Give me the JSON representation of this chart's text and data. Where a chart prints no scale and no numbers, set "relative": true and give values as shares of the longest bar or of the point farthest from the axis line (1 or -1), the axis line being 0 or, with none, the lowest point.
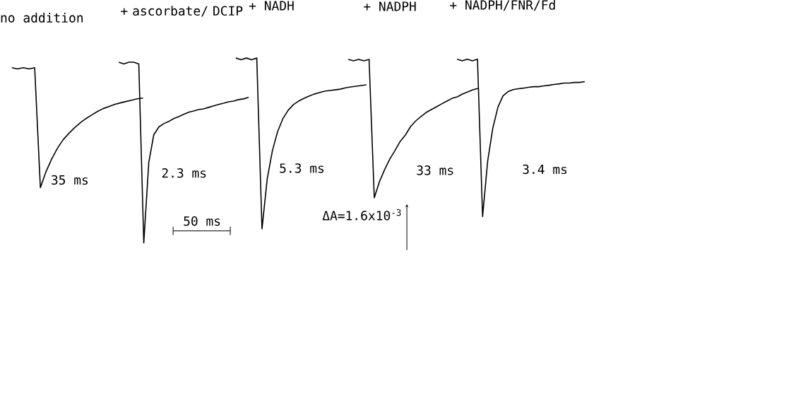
{
  "chart_data": [
    {
      "type": "line",
      "relative": true,
      "title": "no addition",
      "annotations": [
        "35 ms"
      ],
      "categories": [
        null,
        null,
        null,
        null,
        null,
        null,
        null,
        null,
        null,
        null,
        null,
        null,
        null,
        null,
        null,
        null,
        null,
        null,
        null,
        null,
        null,
        null,
        null,
        null
      ],
      "series": [
        {
          "color": "#000000",
          "values": [
            1,
            0.99,
            1,
            0.99,
            1,
            0,
            0.135,
            0.241,
            0.329,
            0.4,
            0.453,
            0.5,
            0.541,
            0.576,
            0.606,
            0.635,
            0.659,
            0.676,
            0.694,
            0.706,
            0.718,
            0.729,
            0.741,
            0.747
          ]
        }
      ]
    },
    {
      "type": "line",
      "relative": true,
      "title": "+ ascorbate/ DCIP",
      "annotations": [
        "2.3 ms",
        "50 ms"
      ],
      "categories": [
        null,
        null,
        null,
        null,
        null,
        null,
        null,
        null,
        null,
        null,
        null,
        null,
        null,
        null,
        null,
        null,
        null,
        null,
        null,
        null,
        null,
        null,
        null,
        null,
        null,
        null,
        null
      ],
      "series": [
        {
          "color": "#000000",
          "values": [
            1,
            0.99,
            1,
            1,
            0.99,
            0,
            0.445,
            0.598,
            0.641,
            0.66,
            0.672,
            0.688,
            0.699,
            0.711,
            0.723,
            0.73,
            0.738,
            0.742,
            0.75,
            0.758,
            0.766,
            0.773,
            0.781,
            0.785,
            0.793,
            0.797,
            0.805
          ]
        }
      ]
    },
    {
      "type": "line",
      "relative": true,
      "title": "+ NADH",
      "annotations": [
        "5.3 ms"
      ],
      "categories": [
        null,
        null,
        null,
        null,
        null,
        null,
        null,
        null,
        null,
        null,
        null,
        null,
        null,
        null,
        null,
        null,
        null,
        null,
        null,
        null,
        null,
        null,
        null,
        null,
        null,
        null
      ],
      "series": [
        {
          "color": "#000000",
          "values": [
            1,
            0.99,
            1,
            0.99,
            1,
            0,
            0.293,
            0.459,
            0.57,
            0.645,
            0.694,
            0.727,
            0.748,
            0.764,
            0.777,
            0.789,
            0.798,
            0.806,
            0.81,
            0.814,
            0.818,
            0.826,
            0.831,
            0.835,
            0.839,
            0.843
          ]
        }
      ]
    },
    {
      "type": "line",
      "relative": true,
      "title": "+ NADPH",
      "annotations": [
        "33 ms",
        "ΔA=1.6x10$^{-3}$"
      ],
      "categories": [
        null,
        null,
        null,
        null,
        null,
        null,
        null,
        null,
        null,
        null,
        null,
        null,
        null,
        null,
        null,
        null,
        null,
        null,
        null,
        null,
        null,
        null,
        null,
        null,
        null,
        null
      ],
      "series": [
        {
          "color": "#000000",
          "values": [
            1,
            0.99,
            1,
            0.99,
            1,
            0,
            0.117,
            0.204,
            0.281,
            0.342,
            0.408,
            0.454,
            0.515,
            0.556,
            0.587,
            0.617,
            0.638,
            0.658,
            0.679,
            0.699,
            0.719,
            0.73,
            0.75,
            0.765,
            0.781,
            0.791
          ]
        }
      ]
    },
    {
      "type": "line",
      "relative": true,
      "title": "+ NADPH/FNR/Fd",
      "annotations": [
        "3.4 ms"
      ],
      "categories": [
        null,
        null,
        null,
        null,
        null,
        null,
        null,
        null,
        null,
        null,
        null,
        null,
        null,
        null,
        null,
        null,
        null,
        null,
        null,
        null,
        null,
        null,
        null,
        null,
        null,
        null
      ],
      "series": [
        {
          "color": "#000000",
          "values": [
            1,
            0.99,
            1,
            0.99,
            1,
            0,
            0.354,
            0.561,
            0.695,
            0.767,
            0.794,
            0.807,
            0.812,
            0.816,
            0.821,
            0.825,
            0.825,
            0.83,
            0.834,
            0.839,
            0.843,
            0.848,
            0.848,
            0.852,
            0.852,
            0.857
          ]
        }
      ]
    }
  ]
}
